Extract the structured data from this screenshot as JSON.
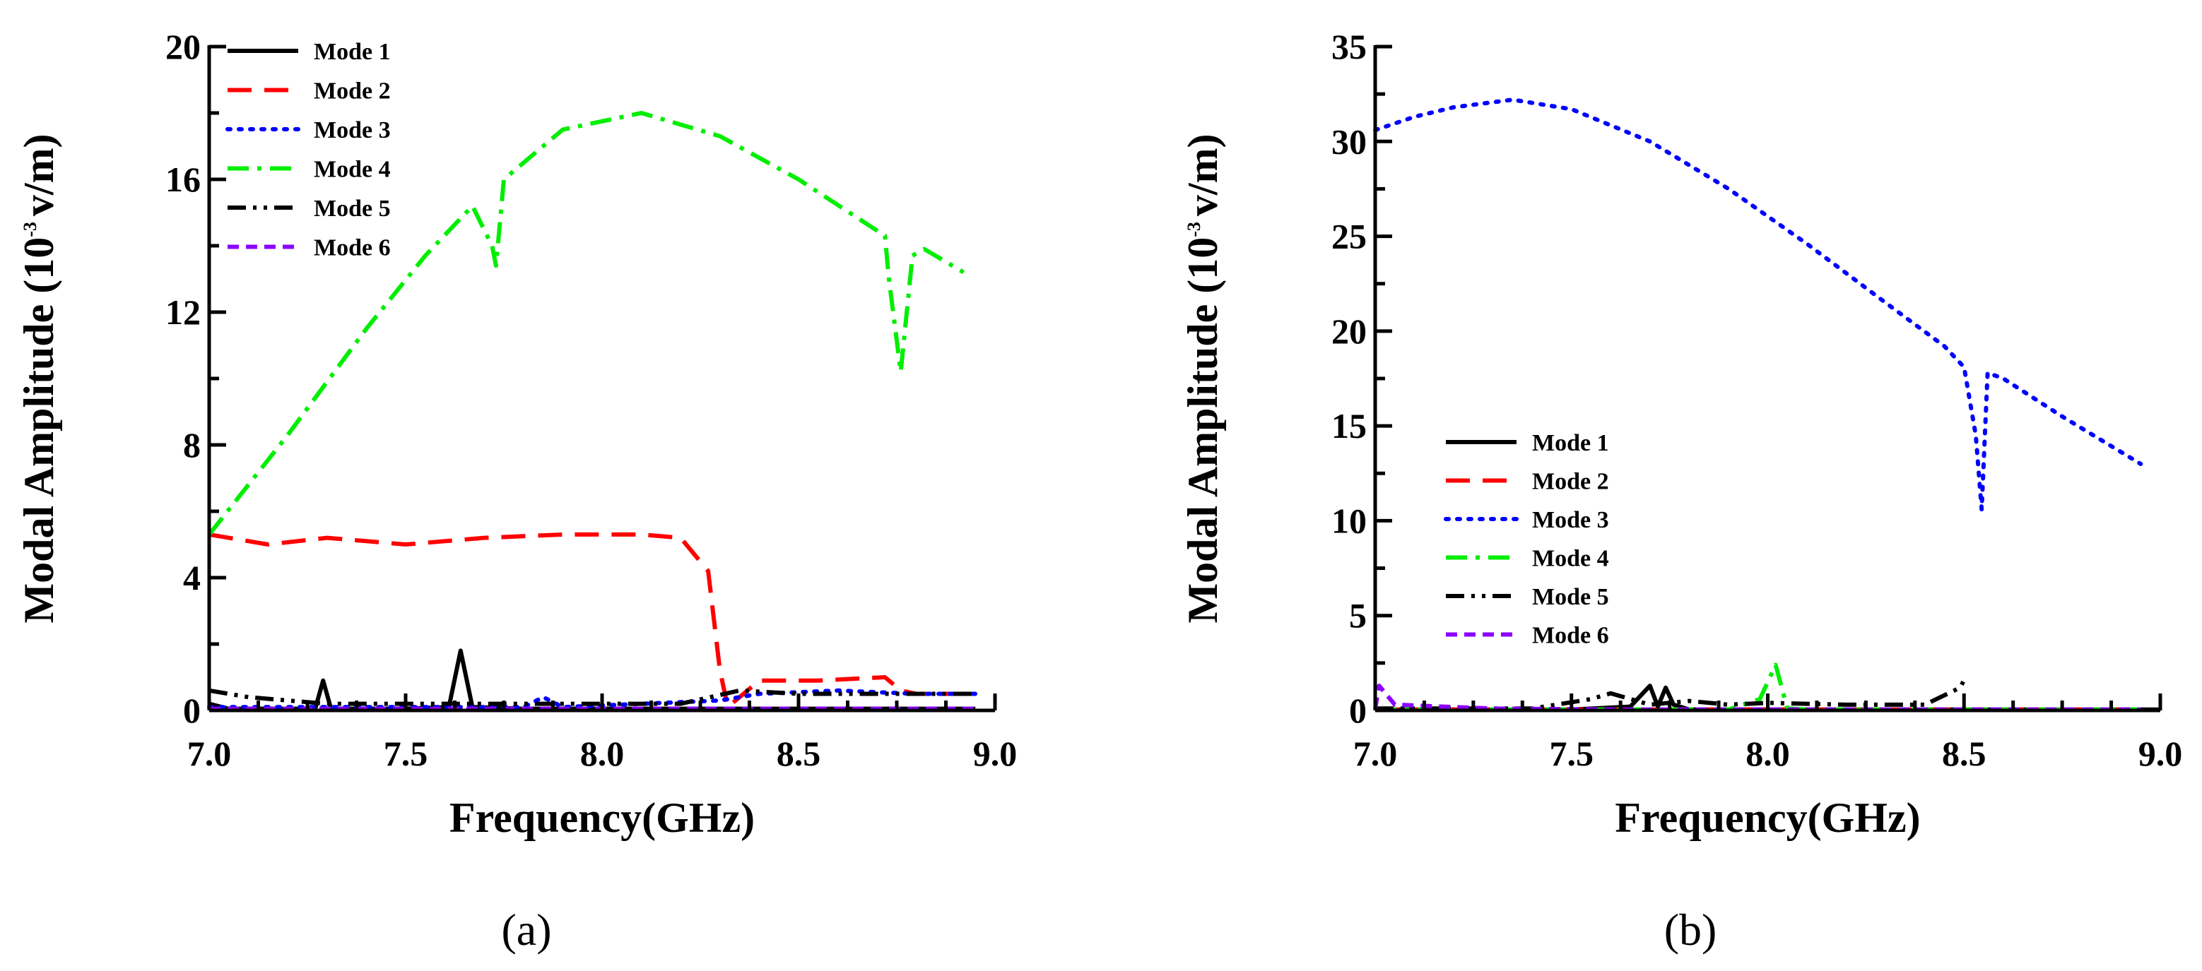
{
  "chart_data": [
    {
      "type": "line",
      "caption": "(a)",
      "xlabel": "Frequency(GHz)",
      "ylabel_prefix": "Modal Amplitude (10",
      "ylabel_exp": "-3",
      "ylabel_suffix": "v/m)",
      "xlim": [
        7.0,
        9.0
      ],
      "ylim": [
        0,
        20
      ],
      "xticks": [
        "7.0",
        "7.5",
        "8.0",
        "8.5",
        "9.0"
      ],
      "xtick_values": [
        7.0,
        7.5,
        8.0,
        8.5,
        9.0
      ],
      "yticks": [
        "0",
        "4",
        "8",
        "12",
        "16",
        "20"
      ],
      "ytick_values": [
        0,
        4,
        8,
        12,
        16,
        20
      ],
      "legend_position": "top-left",
      "series": [
        {
          "name": "Mode 1",
          "color": "#000000",
          "style": "solid",
          "x": [
            7.0,
            7.05,
            7.1,
            7.27,
            7.29,
            7.31,
            7.5,
            7.61,
            7.64,
            7.67,
            7.8,
            8.0,
            8.3,
            8.5,
            8.75,
            8.95
          ],
          "y": [
            0.2,
            0.05,
            0.05,
            0.05,
            0.9,
            0.05,
            0.05,
            0.1,
            1.8,
            0.1,
            0.05,
            0.05,
            0.05,
            0.05,
            0.05,
            0.05
          ]
        },
        {
          "name": "Mode 2",
          "color": "#ff0000",
          "style": "dashed",
          "x": [
            7.0,
            7.15,
            7.3,
            7.5,
            7.7,
            7.9,
            8.1,
            8.2,
            8.27,
            8.3,
            8.32,
            8.4,
            8.55,
            8.72,
            8.76,
            8.8,
            8.95
          ],
          "y": [
            5.3,
            5.0,
            5.2,
            5.0,
            5.2,
            5.3,
            5.3,
            5.2,
            4.2,
            1.2,
            0.1,
            0.9,
            0.9,
            1.0,
            0.6,
            0.5,
            0.5
          ]
        },
        {
          "name": "Mode 3",
          "color": "#0000ff",
          "style": "dotted",
          "x": [
            7.0,
            7.2,
            7.4,
            7.6,
            7.8,
            7.85,
            7.9,
            8.1,
            8.3,
            8.4,
            8.6,
            8.8,
            8.95
          ],
          "y": [
            0.1,
            0.1,
            0.1,
            0.1,
            0.1,
            0.4,
            0.1,
            0.2,
            0.3,
            0.5,
            0.6,
            0.5,
            0.5
          ]
        },
        {
          "name": "Mode 4",
          "color": "#00ee00",
          "style": "dashdot",
          "x": [
            7.0,
            7.2,
            7.4,
            7.55,
            7.67,
            7.72,
            7.73,
            7.75,
            7.9,
            8.1,
            8.3,
            8.5,
            8.72,
            8.73,
            8.76,
            8.79,
            8.82,
            8.92
          ],
          "y": [
            5.3,
            8.3,
            11.5,
            13.7,
            15.2,
            14.0,
            13.4,
            16.0,
            17.5,
            18.0,
            17.3,
            16.0,
            14.3,
            13.0,
            10.2,
            13.7,
            13.9,
            13.2
          ]
        },
        {
          "name": "Mode 5",
          "color": "#000000",
          "style": "dashdotdot",
          "x": [
            7.0,
            7.1,
            7.3,
            7.5,
            7.7,
            7.9,
            8.1,
            8.2,
            8.35,
            8.5,
            8.7,
            8.95
          ],
          "y": [
            0.6,
            0.4,
            0.2,
            0.2,
            0.2,
            0.2,
            0.2,
            0.2,
            0.6,
            0.5,
            0.5,
            0.5
          ]
        },
        {
          "name": "Mode 6",
          "color": "#8b00ff",
          "style": "shortdash",
          "x": [
            7.0,
            7.5,
            8.0,
            8.5,
            8.95
          ],
          "y": [
            0.05,
            0.05,
            0.05,
            0.05,
            0.05
          ]
        }
      ]
    },
    {
      "type": "line",
      "caption": "(b)",
      "xlabel": "Frequency(GHz)",
      "ylabel_prefix": "Modal Amplitude (10",
      "ylabel_exp": "-3",
      "ylabel_suffix": "v/m)",
      "xlim": [
        7.0,
        9.0
      ],
      "ylim": [
        0,
        35
      ],
      "xticks": [
        "7.0",
        "7.5",
        "8.0",
        "8.5",
        "9.0"
      ],
      "xtick_values": [
        7.0,
        7.5,
        8.0,
        8.5,
        9.0
      ],
      "yticks": [
        "0",
        "5",
        "10",
        "15",
        "20",
        "25",
        "30",
        "35"
      ],
      "ytick_values": [
        0,
        5,
        10,
        15,
        20,
        25,
        30,
        35
      ],
      "legend_position": "center-left",
      "series": [
        {
          "name": "Mode 1",
          "color": "#000000",
          "style": "solid",
          "x": [
            7.0,
            7.5,
            7.65,
            7.7,
            7.72,
            7.74,
            7.76,
            7.8,
            8.0,
            8.5,
            9.0
          ],
          "y": [
            0.05,
            0.05,
            0.2,
            1.3,
            0.2,
            1.2,
            0.3,
            0.05,
            0.05,
            0.05,
            0.05
          ]
        },
        {
          "name": "Mode 2",
          "color": "#ff0000",
          "style": "dashed",
          "x": [
            7.0,
            7.5,
            8.0,
            8.5,
            8.95
          ],
          "y": [
            0.05,
            0.05,
            0.05,
            0.05,
            0.05
          ]
        },
        {
          "name": "Mode 3",
          "color": "#0000ff",
          "style": "dotted",
          "x": [
            7.0,
            7.1,
            7.2,
            7.35,
            7.5,
            7.7,
            7.9,
            8.1,
            8.3,
            8.45,
            8.5,
            8.53,
            8.545,
            8.56,
            8.6,
            8.75,
            8.95
          ],
          "y": [
            30.6,
            31.3,
            31.8,
            32.2,
            31.7,
            30.0,
            27.5,
            24.6,
            21.5,
            19.2,
            18.1,
            14.5,
            10.6,
            17.8,
            17.5,
            15.5,
            13.0
          ]
        },
        {
          "name": "Mode 4",
          "color": "#00ee00",
          "style": "dashdot",
          "x": [
            7.0,
            7.5,
            7.9,
            7.98,
            8.02,
            8.05,
            8.1,
            8.5,
            8.95
          ],
          "y": [
            0.05,
            0.05,
            0.05,
            0.6,
            2.4,
            0.1,
            0.05,
            0.05,
            0.05
          ]
        },
        {
          "name": "Mode 5",
          "color": "#000000",
          "style": "dashdotdot",
          "x": [
            7.0,
            7.2,
            7.4,
            7.55,
            7.6,
            7.7,
            7.8,
            7.9,
            8.0,
            8.2,
            8.4,
            8.49,
            8.5
          ],
          "y": [
            0.1,
            0.1,
            0.1,
            0.6,
            0.9,
            0.3,
            0.5,
            0.3,
            0.4,
            0.3,
            0.3,
            1.2,
            1.6
          ]
        },
        {
          "name": "Mode 6",
          "color": "#8b00ff",
          "style": "shortdash",
          "x": [
            7.0,
            7.01,
            7.05,
            7.3,
            7.6,
            8.0,
            8.5,
            8.95
          ],
          "y": [
            0.1,
            1.3,
            0.3,
            0.1,
            0.05,
            0.05,
            0.05,
            0.05
          ]
        }
      ]
    }
  ]
}
